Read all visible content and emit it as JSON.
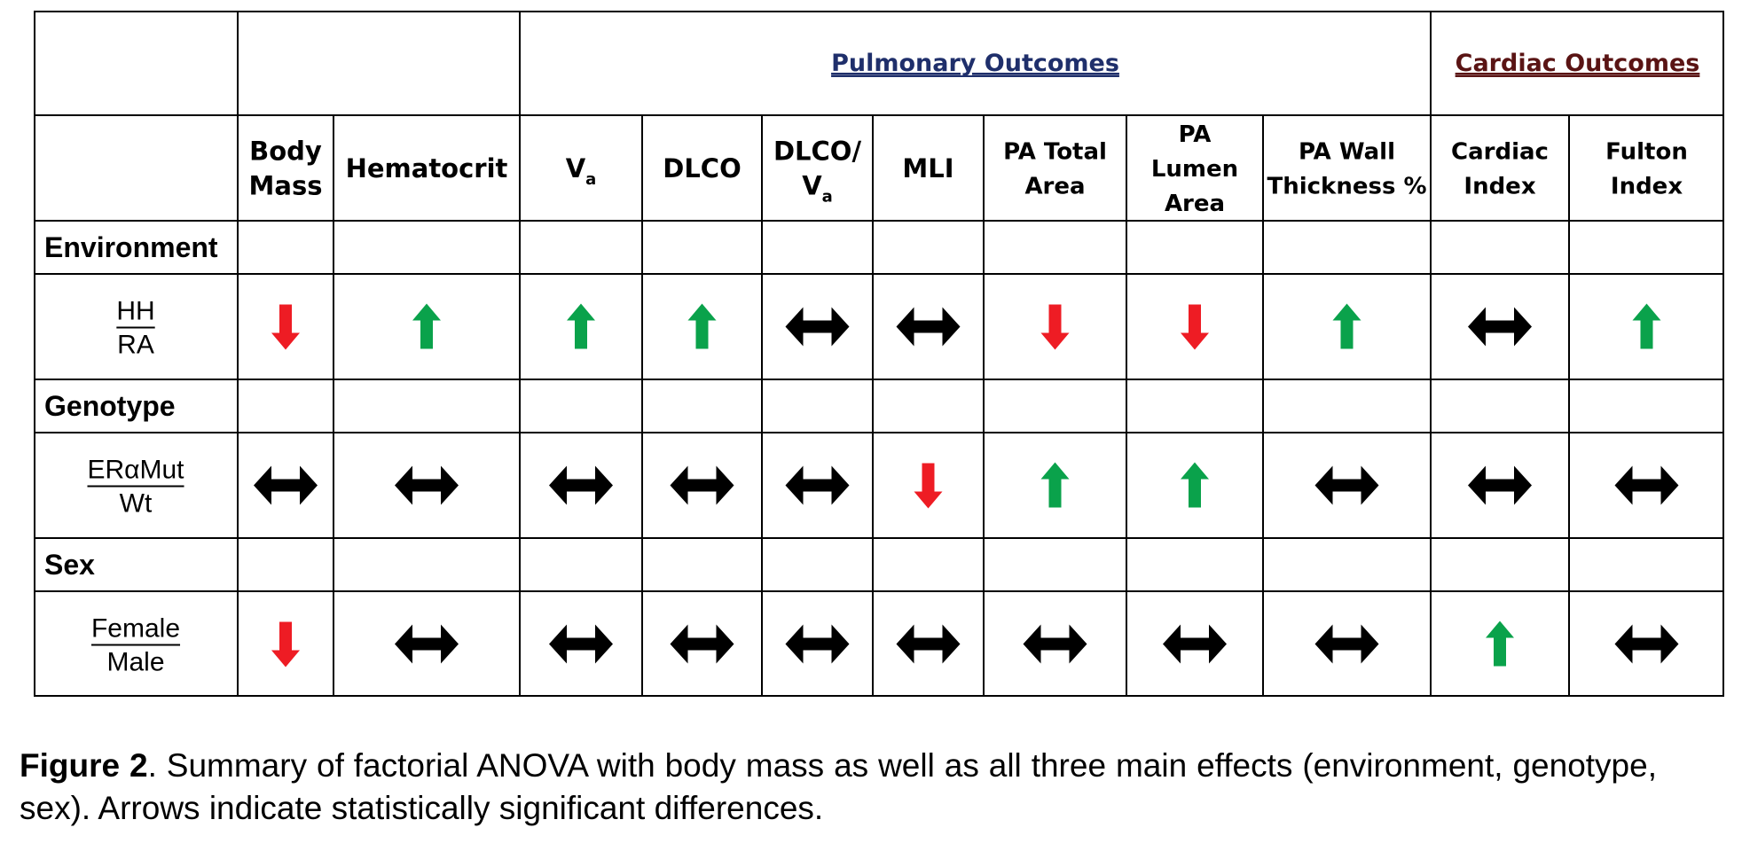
{
  "groups": [
    {
      "label": "Pulmonary Outcomes",
      "color": "#1f2f6b"
    },
    {
      "label": "Cardiac Outcomes",
      "color": "#5a1414"
    }
  ],
  "columns": [
    {
      "lines": [
        "Body",
        "Mass"
      ]
    },
    {
      "lines": [
        "Hematocrit"
      ]
    },
    {
      "lines": [
        "V"
      ],
      "sub": "a"
    },
    {
      "lines": [
        "DLCO"
      ]
    },
    {
      "lines": [
        "DLCO/",
        "V"
      ],
      "sub": "a"
    },
    {
      "lines": [
        "MLI"
      ]
    },
    {
      "lines": [
        "PA Total",
        "Area"
      ]
    },
    {
      "lines": [
        "PA",
        "Lumen",
        "Area"
      ]
    },
    {
      "lines": [
        "PA Wall",
        "Thickness %"
      ]
    },
    {
      "lines": [
        "Cardiac",
        "Index"
      ]
    },
    {
      "lines": [
        "Fulton",
        "Index"
      ]
    }
  ],
  "factors": [
    {
      "label": "Environment",
      "numerator": "HH",
      "denominator": "RA",
      "effects": [
        "down",
        "up",
        "up",
        "up",
        "both",
        "both",
        "down",
        "down",
        "up",
        "both",
        "up"
      ]
    },
    {
      "label": "Genotype",
      "numerator": "ERαMut",
      "denominator": "Wt",
      "effects": [
        "both",
        "both",
        "both",
        "both",
        "both",
        "down",
        "up",
        "up",
        "both",
        "both",
        "both"
      ]
    },
    {
      "label": "Sex",
      "numerator": "Female",
      "denominator": "Male",
      "effects": [
        "down",
        "both",
        "both",
        "both",
        "both",
        "both",
        "both",
        "both",
        "both",
        "up",
        "both"
      ]
    }
  ],
  "colors": {
    "up": "#0aa24b",
    "down": "#ee1c24",
    "both": "#000000"
  },
  "caption": {
    "label": "Figure 2",
    "text": ". Summary of factorial ANOVA with body mass as well as all three main effects (environment, genotype, sex). Arrows indicate statistically significant differences."
  }
}
